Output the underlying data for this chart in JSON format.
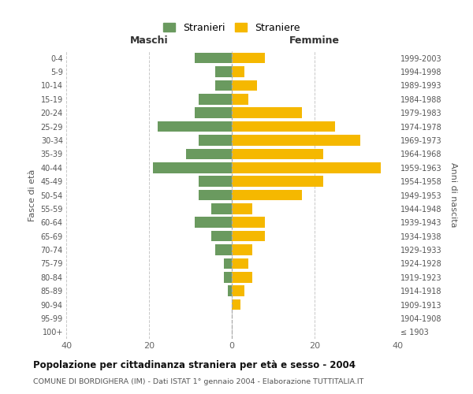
{
  "age_groups": [
    "100+",
    "95-99",
    "90-94",
    "85-89",
    "80-84",
    "75-79",
    "70-74",
    "65-69",
    "60-64",
    "55-59",
    "50-54",
    "45-49",
    "40-44",
    "35-39",
    "30-34",
    "25-29",
    "20-24",
    "15-19",
    "10-14",
    "5-9",
    "0-4"
  ],
  "birth_years": [
    "≤ 1903",
    "1904-1908",
    "1909-1913",
    "1914-1918",
    "1919-1923",
    "1924-1928",
    "1929-1933",
    "1934-1938",
    "1939-1943",
    "1944-1948",
    "1949-1953",
    "1954-1958",
    "1959-1963",
    "1964-1968",
    "1969-1973",
    "1974-1978",
    "1979-1983",
    "1984-1988",
    "1989-1993",
    "1994-1998",
    "1999-2003"
  ],
  "maschi": [
    0,
    0,
    0,
    1,
    2,
    2,
    4,
    5,
    9,
    5,
    8,
    8,
    19,
    11,
    8,
    18,
    9,
    8,
    4,
    4,
    9
  ],
  "femmine": [
    0,
    0,
    2,
    3,
    5,
    4,
    5,
    8,
    8,
    5,
    17,
    22,
    36,
    22,
    31,
    25,
    17,
    4,
    6,
    3,
    8
  ],
  "color_maschi": "#6a9a5f",
  "color_femmine": "#f5b800",
  "background_color": "#ffffff",
  "grid_color": "#c8c8c8",
  "title": "Popolazione per cittadinanza straniera per età e sesso - 2004",
  "subtitle": "COMUNE DI BORDIGHERA (IM) - Dati ISTAT 1° gennaio 2004 - Elaborazione TUTTITALIA.IT",
  "xlabel_left": "Maschi",
  "xlabel_right": "Femmine",
  "ylabel_left": "Fasce di età",
  "ylabel_right": "Anni di nascita",
  "xlim": 40,
  "legend_stranieri": "Stranieri",
  "legend_straniere": "Straniere"
}
